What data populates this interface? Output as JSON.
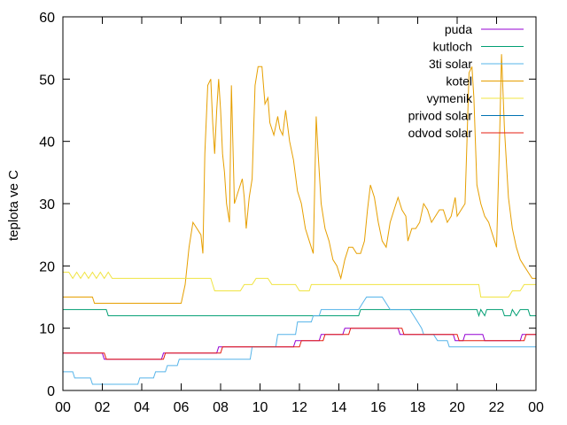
{
  "chart_data": {
    "type": "line",
    "title": "",
    "xlabel": "",
    "ylabel": "teplota ve C",
    "xlim": [
      0,
      24
    ],
    "ylim": [
      0,
      60
    ],
    "x_tick_labels": [
      "00",
      "02",
      "04",
      "06",
      "08",
      "10",
      "12",
      "14",
      "16",
      "18",
      "20",
      "22",
      "00"
    ],
    "y_ticks": [
      0,
      10,
      20,
      30,
      40,
      50,
      60
    ],
    "grid": false,
    "legend_position": "top-right",
    "series": [
      {
        "name": "puda",
        "color": "#9400d3",
        "points": [
          [
            0,
            6
          ],
          [
            2.0,
            6
          ],
          [
            2.1,
            5
          ],
          [
            5.0,
            5
          ],
          [
            5.1,
            6
          ],
          [
            7.8,
            6
          ],
          [
            7.9,
            7
          ],
          [
            11.7,
            7
          ],
          [
            11.8,
            8
          ],
          [
            13.0,
            8
          ],
          [
            13.1,
            9
          ],
          [
            14.2,
            9
          ],
          [
            14.3,
            10
          ],
          [
            17.0,
            10
          ],
          [
            17.1,
            9
          ],
          [
            19.8,
            9
          ],
          [
            19.9,
            8
          ],
          [
            20.3,
            8
          ],
          [
            20.4,
            9
          ],
          [
            21.3,
            9
          ],
          [
            21.4,
            8
          ],
          [
            23.2,
            8
          ],
          [
            23.3,
            9
          ],
          [
            24,
            9
          ]
        ]
      },
      {
        "name": "kutloch",
        "color": "#009e73",
        "points": [
          [
            0,
            13
          ],
          [
            2.2,
            13
          ],
          [
            2.3,
            12
          ],
          [
            15.0,
            12
          ],
          [
            15.1,
            13
          ],
          [
            21.0,
            13
          ],
          [
            21.1,
            12
          ],
          [
            21.2,
            13
          ],
          [
            21.4,
            12
          ],
          [
            21.5,
            13
          ],
          [
            22.3,
            13
          ],
          [
            22.4,
            12
          ],
          [
            22.7,
            12
          ],
          [
            22.8,
            13
          ],
          [
            23.0,
            12
          ],
          [
            23.2,
            13
          ],
          [
            23.6,
            13
          ],
          [
            23.7,
            12
          ],
          [
            24,
            12
          ]
        ]
      },
      {
        "name": "3ti solar",
        "color": "#56b4e9",
        "points": [
          [
            0,
            3
          ],
          [
            0.5,
            3
          ],
          [
            0.6,
            2
          ],
          [
            1.4,
            2
          ],
          [
            1.5,
            1
          ],
          [
            3.8,
            1
          ],
          [
            3.9,
            2
          ],
          [
            4.6,
            2
          ],
          [
            4.7,
            3
          ],
          [
            5.2,
            3
          ],
          [
            5.3,
            4
          ],
          [
            5.8,
            4
          ],
          [
            5.9,
            5
          ],
          [
            9.5,
            5
          ],
          [
            9.6,
            7
          ],
          [
            10.8,
            7
          ],
          [
            10.9,
            9
          ],
          [
            11.8,
            9
          ],
          [
            11.9,
            11
          ],
          [
            12.6,
            11
          ],
          [
            12.7,
            12
          ],
          [
            13.0,
            12
          ],
          [
            13.1,
            13
          ],
          [
            15.0,
            13
          ],
          [
            15.2,
            14
          ],
          [
            15.4,
            15
          ],
          [
            16.2,
            15
          ],
          [
            16.4,
            14
          ],
          [
            16.6,
            13
          ],
          [
            17.6,
            13
          ],
          [
            18.0,
            11
          ],
          [
            18.2,
            10
          ],
          [
            18.3,
            9
          ],
          [
            18.8,
            9
          ],
          [
            19.0,
            8
          ],
          [
            19.5,
            8
          ],
          [
            19.6,
            7
          ],
          [
            24,
            7
          ]
        ]
      },
      {
        "name": "kotel",
        "color": "#e69f00",
        "points": [
          [
            0,
            15
          ],
          [
            1.5,
            15
          ],
          [
            1.6,
            14
          ],
          [
            6.0,
            14
          ],
          [
            6.2,
            17
          ],
          [
            6.4,
            23
          ],
          [
            6.6,
            27
          ],
          [
            6.8,
            26
          ],
          [
            7.0,
            25
          ],
          [
            7.1,
            22
          ],
          [
            7.2,
            38
          ],
          [
            7.35,
            49
          ],
          [
            7.5,
            50
          ],
          [
            7.6,
            43
          ],
          [
            7.7,
            38
          ],
          [
            7.8,
            45
          ],
          [
            7.9,
            50
          ],
          [
            8.0,
            45
          ],
          [
            8.1,
            38
          ],
          [
            8.2,
            35
          ],
          [
            8.3,
            30
          ],
          [
            8.45,
            27
          ],
          [
            8.55,
            49
          ],
          [
            8.7,
            30
          ],
          [
            8.9,
            32
          ],
          [
            9.1,
            34
          ],
          [
            9.2,
            31
          ],
          [
            9.3,
            26
          ],
          [
            9.45,
            31
          ],
          [
            9.6,
            34
          ],
          [
            9.75,
            49
          ],
          [
            9.9,
            52
          ],
          [
            10.1,
            52
          ],
          [
            10.25,
            46
          ],
          [
            10.4,
            47
          ],
          [
            10.5,
            43
          ],
          [
            10.7,
            41
          ],
          [
            10.9,
            44
          ],
          [
            11.0,
            42
          ],
          [
            11.15,
            41
          ],
          [
            11.3,
            45
          ],
          [
            11.5,
            40
          ],
          [
            11.7,
            37
          ],
          [
            11.9,
            32
          ],
          [
            12.1,
            30
          ],
          [
            12.3,
            26
          ],
          [
            12.5,
            24
          ],
          [
            12.7,
            22
          ],
          [
            12.85,
            44
          ],
          [
            12.95,
            38
          ],
          [
            13.1,
            30
          ],
          [
            13.3,
            26
          ],
          [
            13.5,
            24
          ],
          [
            13.7,
            21
          ],
          [
            13.9,
            20
          ],
          [
            14.1,
            18
          ],
          [
            14.3,
            21
          ],
          [
            14.5,
            23
          ],
          [
            14.7,
            23
          ],
          [
            14.9,
            22
          ],
          [
            15.1,
            22
          ],
          [
            15.3,
            24
          ],
          [
            15.45,
            29
          ],
          [
            15.6,
            33
          ],
          [
            15.8,
            31
          ],
          [
            16.0,
            27
          ],
          [
            16.2,
            24
          ],
          [
            16.4,
            23
          ],
          [
            16.6,
            27
          ],
          [
            16.8,
            29
          ],
          [
            17.0,
            31
          ],
          [
            17.2,
            29
          ],
          [
            17.4,
            28
          ],
          [
            17.5,
            24
          ],
          [
            17.7,
            26
          ],
          [
            17.9,
            26
          ],
          [
            18.1,
            27
          ],
          [
            18.3,
            30
          ],
          [
            18.5,
            29
          ],
          [
            18.7,
            27
          ],
          [
            18.9,
            28
          ],
          [
            19.1,
            29
          ],
          [
            19.3,
            29
          ],
          [
            19.5,
            27
          ],
          [
            19.7,
            28
          ],
          [
            19.9,
            31
          ],
          [
            20.0,
            28
          ],
          [
            20.2,
            29
          ],
          [
            20.4,
            30
          ],
          [
            20.5,
            40
          ],
          [
            20.6,
            51
          ],
          [
            20.75,
            52
          ],
          [
            20.85,
            47
          ],
          [
            21.0,
            33
          ],
          [
            21.2,
            30
          ],
          [
            21.4,
            28
          ],
          [
            21.6,
            27
          ],
          [
            21.8,
            25
          ],
          [
            22.0,
            23
          ],
          [
            22.15,
            40
          ],
          [
            22.25,
            54
          ],
          [
            22.4,
            42
          ],
          [
            22.6,
            31
          ],
          [
            22.8,
            26
          ],
          [
            23.0,
            23
          ],
          [
            23.2,
            21
          ],
          [
            23.4,
            20
          ],
          [
            23.6,
            19
          ],
          [
            23.8,
            18
          ],
          [
            24.0,
            18
          ],
          [
            24.2,
            17
          ],
          [
            24.4,
            16
          ],
          [
            24,
            16
          ]
        ]
      },
      {
        "name": "vymenik",
        "color": "#f0e442",
        "points": [
          [
            0,
            19
          ],
          [
            0.3,
            19
          ],
          [
            0.5,
            18
          ],
          [
            0.7,
            19
          ],
          [
            0.9,
            18
          ],
          [
            1.1,
            19
          ],
          [
            1.3,
            18
          ],
          [
            1.5,
            19
          ],
          [
            1.7,
            18
          ],
          [
            1.9,
            19
          ],
          [
            2.1,
            18
          ],
          [
            2.3,
            19
          ],
          [
            2.5,
            18
          ],
          [
            7.5,
            18
          ],
          [
            7.7,
            16
          ],
          [
            9.0,
            16
          ],
          [
            9.2,
            17
          ],
          [
            9.6,
            17
          ],
          [
            9.8,
            18
          ],
          [
            10.4,
            18
          ],
          [
            10.6,
            17
          ],
          [
            11.8,
            17
          ],
          [
            12.0,
            16
          ],
          [
            12.5,
            16
          ],
          [
            12.6,
            17
          ],
          [
            21.1,
            17
          ],
          [
            21.2,
            15
          ],
          [
            22.6,
            15
          ],
          [
            22.8,
            16
          ],
          [
            23.2,
            16
          ],
          [
            23.4,
            17
          ],
          [
            24,
            17
          ]
        ]
      },
      {
        "name": "privod solar",
        "color": "#0072b2",
        "points": []
      },
      {
        "name": "odvod solar",
        "color": "#e51e10",
        "points": [
          [
            0,
            6
          ],
          [
            2.1,
            6
          ],
          [
            2.2,
            5
          ],
          [
            5.1,
            5
          ],
          [
            5.2,
            6
          ],
          [
            8.0,
            6
          ],
          [
            8.1,
            7
          ],
          [
            12.0,
            7
          ],
          [
            12.1,
            8
          ],
          [
            13.2,
            8
          ],
          [
            13.3,
            9
          ],
          [
            14.5,
            9
          ],
          [
            14.6,
            10
          ],
          [
            17.2,
            10
          ],
          [
            17.3,
            9
          ],
          [
            20.0,
            9
          ],
          [
            20.1,
            8
          ],
          [
            21.4,
            8
          ],
          [
            21.5,
            8
          ],
          [
            23.4,
            8
          ],
          [
            23.5,
            9
          ],
          [
            24,
            9
          ]
        ]
      }
    ]
  }
}
